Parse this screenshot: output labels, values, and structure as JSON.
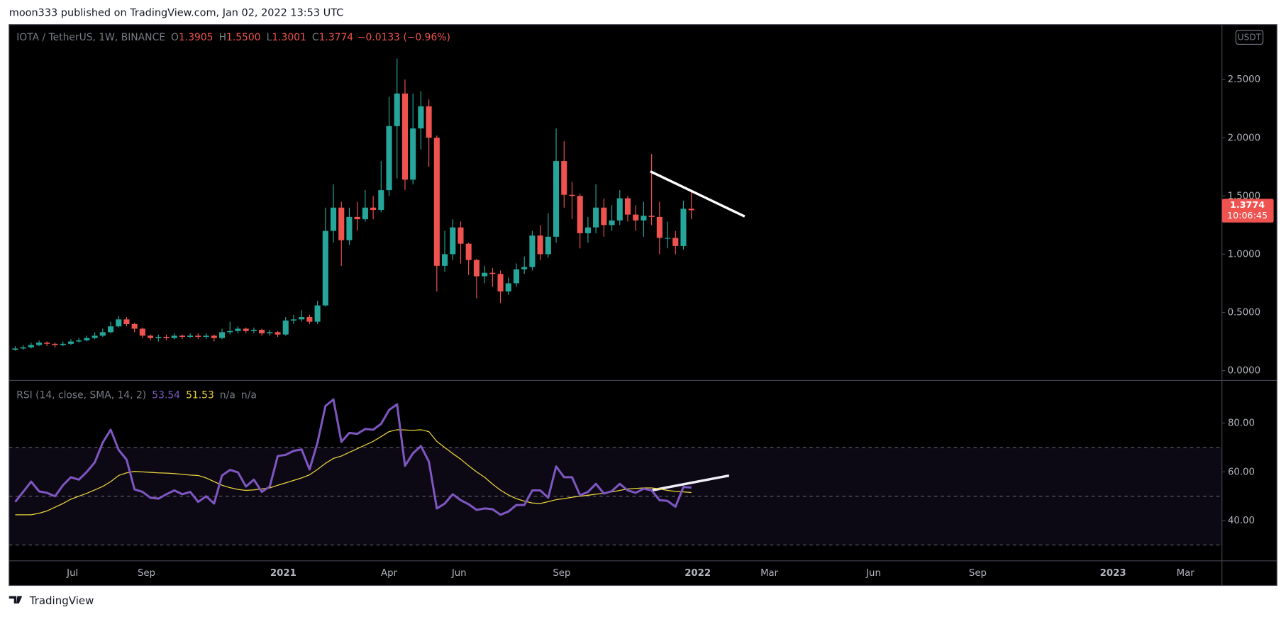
{
  "header": "moon333 published on TradingView.com, Jan 02, 2022 13:53 UTC",
  "footer": "TradingView",
  "chart_data": [
    {
      "type": "candlestick",
      "currency": "USDT",
      "legend": {
        "symbol": "IOTA / TetherUS, 1W, BINANCE",
        "fields": [
          {
            "key": "O",
            "value": "1.3905"
          },
          {
            "key": "H",
            "value": "1.5500"
          },
          {
            "key": "L",
            "value": "1.3001"
          },
          {
            "key": "C",
            "value": "1.3774"
          }
        ],
        "change": "−0.0133 (−0.96%)"
      },
      "countdown": "10:06:45",
      "up_color": "#26a69a",
      "down_color": "#ef5350",
      "open": [
        0.18,
        0.19,
        0.2,
        0.22,
        0.24,
        0.23,
        0.22,
        0.23,
        0.25,
        0.26,
        0.28,
        0.3,
        0.33,
        0.38,
        0.44,
        0.4,
        0.36,
        0.3,
        0.28,
        0.29,
        0.28,
        0.3,
        0.29,
        0.3,
        0.29,
        0.3,
        0.28,
        0.33,
        0.34,
        0.36,
        0.34,
        0.35,
        0.32,
        0.33,
        0.31,
        0.43,
        0.44,
        0.46,
        0.42,
        0.56,
        1.2,
        1.4,
        1.12,
        1.32,
        1.3,
        1.4,
        1.38,
        1.55,
        2.1,
        2.38,
        1.64,
        2.08,
        2.27,
        2.0,
        0.9,
        1.0,
        1.23,
        1.09,
        0.95,
        0.81,
        0.84,
        0.83,
        0.68,
        0.75,
        0.87,
        0.89,
        1.16,
        1.0,
        1.15,
        1.8,
        1.51,
        1.5,
        1.18,
        1.23,
        1.4,
        1.25,
        1.29,
        1.48,
        1.34,
        1.29,
        1.33,
        1.32,
        1.14,
        1.14,
        1.07,
        1.3905
      ],
      "high": [
        0.21,
        0.22,
        0.24,
        0.26,
        0.25,
        0.24,
        0.25,
        0.27,
        0.28,
        0.3,
        0.33,
        0.36,
        0.42,
        0.47,
        0.46,
        0.41,
        0.37,
        0.31,
        0.31,
        0.31,
        0.32,
        0.31,
        0.32,
        0.32,
        0.32,
        0.31,
        0.36,
        0.42,
        0.38,
        0.37,
        0.37,
        0.36,
        0.35,
        0.34,
        0.46,
        0.48,
        0.52,
        0.48,
        0.6,
        1.4,
        1.6,
        1.45,
        1.4,
        1.45,
        1.55,
        1.5,
        1.8,
        2.35,
        2.68,
        2.5,
        2.38,
        2.4,
        2.33,
        2.02,
        1.2,
        1.3,
        1.28,
        1.1,
        0.96,
        0.9,
        0.88,
        0.86,
        0.8,
        0.92,
        0.98,
        1.2,
        1.25,
        1.35,
        2.08,
        1.97,
        1.62,
        1.52,
        1.32,
        1.6,
        1.48,
        1.42,
        1.55,
        1.5,
        1.42,
        1.45,
        1.86,
        1.45,
        1.28,
        1.2,
        1.46,
        1.55
      ],
      "low": [
        0.17,
        0.18,
        0.19,
        0.21,
        0.21,
        0.2,
        0.21,
        0.22,
        0.24,
        0.25,
        0.27,
        0.29,
        0.32,
        0.37,
        0.38,
        0.33,
        0.28,
        0.26,
        0.25,
        0.26,
        0.27,
        0.27,
        0.28,
        0.27,
        0.27,
        0.25,
        0.27,
        0.31,
        0.32,
        0.32,
        0.32,
        0.3,
        0.3,
        0.29,
        0.3,
        0.4,
        0.42,
        0.4,
        0.4,
        0.55,
        1.1,
        0.9,
        1.08,
        1.2,
        1.28,
        1.3,
        1.36,
        1.5,
        1.65,
        1.55,
        1.6,
        1.9,
        1.75,
        0.68,
        0.85,
        0.95,
        0.92,
        0.82,
        0.62,
        0.75,
        0.72,
        0.58,
        0.65,
        0.72,
        0.83,
        0.86,
        0.95,
        0.97,
        1.1,
        1.4,
        1.3,
        1.05,
        1.1,
        1.18,
        1.15,
        1.2,
        1.25,
        1.28,
        1.2,
        1.15,
        1.25,
        1.0,
        1.05,
        1.0,
        1.04,
        1.3001
      ],
      "close": [
        0.19,
        0.2,
        0.22,
        0.24,
        0.23,
        0.22,
        0.23,
        0.25,
        0.26,
        0.28,
        0.3,
        0.33,
        0.38,
        0.44,
        0.4,
        0.36,
        0.3,
        0.28,
        0.29,
        0.28,
        0.3,
        0.29,
        0.3,
        0.29,
        0.3,
        0.28,
        0.33,
        0.34,
        0.36,
        0.34,
        0.35,
        0.32,
        0.33,
        0.31,
        0.43,
        0.44,
        0.46,
        0.42,
        0.56,
        1.2,
        1.4,
        1.12,
        1.32,
        1.3,
        1.4,
        1.38,
        1.55,
        2.1,
        2.38,
        1.64,
        2.08,
        2.27,
        2.0,
        0.9,
        1.0,
        1.23,
        1.09,
        0.95,
        0.81,
        0.84,
        0.83,
        0.68,
        0.75,
        0.87,
        0.89,
        1.16,
        1.0,
        1.15,
        1.8,
        1.51,
        1.5,
        1.18,
        1.23,
        1.4,
        1.25,
        1.29,
        1.48,
        1.34,
        1.29,
        1.33,
        1.32,
        1.14,
        1.14,
        1.07,
        1.39,
        1.3774
      ],
      "xlim": [
        -0.77,
        151.7
      ],
      "xticks": [
        {
          "value": 7.2,
          "label": "Jul"
        },
        {
          "value": 16.5,
          "label": "Sep"
        },
        {
          "value": 33.7,
          "label": "2021"
        },
        {
          "value": 47,
          "label": "Apr"
        },
        {
          "value": 55.8,
          "label": "Jun"
        },
        {
          "value": 68.7,
          "label": "Sep"
        },
        {
          "value": 85.8,
          "label": "2022"
        },
        {
          "value": 94.8,
          "label": "Mar"
        },
        {
          "value": 107.9,
          "label": "Jun"
        },
        {
          "value": 121,
          "label": "Sep"
        },
        {
          "value": 138,
          "label": "2023"
        },
        {
          "value": 147.1,
          "label": "Mar"
        }
      ],
      "ylim": [
        -0.0845,
        2.972
      ],
      "yticks": [
        {
          "value": 0,
          "label": "0.0000"
        },
        {
          "value": 0.5,
          "label": "0.5000"
        },
        {
          "value": 1,
          "label": "1.0000"
        },
        {
          "value": 1.5,
          "label": "1.5000"
        },
        {
          "value": 2,
          "label": "2.0000"
        },
        {
          "value": 2.5,
          "label": "2.5000"
        }
      ]
    },
    {
      "type": "line",
      "title": "RSI (14, close, SMA, 14, 2)",
      "extra_labels": [
        "n/a",
        "n/a"
      ],
      "levels": [
        70,
        50,
        30
      ],
      "band_color": "#7e57c2",
      "series": [
        {
          "color": "#7e57c2",
          "values": [
            47.7,
            51.8,
            56,
            52,
            51.4,
            50,
            54.5,
            57.8,
            56.8,
            60,
            63.9,
            72,
            77.3,
            69,
            65,
            52.8,
            51.8,
            49.4,
            49,
            50.8,
            52.4,
            50.8,
            51.8,
            47.7,
            50,
            47,
            58.5,
            60.8,
            59.8,
            54,
            56.8,
            51.8,
            54,
            66.5,
            67,
            68.6,
            69.2,
            61,
            72,
            87,
            89.7,
            72.3,
            76,
            75.6,
            77.6,
            77.3,
            79.7,
            85.4,
            87.7,
            62.5,
            67.6,
            70.6,
            64.2,
            45,
            47,
            50.8,
            48.4,
            46.7,
            44.4,
            45,
            44.7,
            42.4,
            43.7,
            46.4,
            46.4,
            52.4,
            52.4,
            49.4,
            62.2,
            57.8,
            57.8,
            50.4,
            51.8,
            55.1,
            51.1,
            52.1,
            55.1,
            52.4,
            51.4,
            53.1,
            52.4,
            48.4,
            48.1,
            45.7,
            53.8,
            53.54
          ]
        },
        {
          "color": "#e8d23e",
          "values": [
            42.4,
            42.4,
            42.4,
            43,
            44,
            45.5,
            47,
            48.8,
            50,
            51.2,
            52.6,
            54,
            56,
            58.5,
            59.6,
            60.2,
            60,
            59.8,
            59.6,
            59.5,
            59.3,
            59,
            58.7,
            58.5,
            57.5,
            56,
            54.5,
            53.5,
            52.8,
            52.4,
            52.6,
            53,
            53.4,
            54.5,
            55.5,
            56.5,
            57.5,
            58.8,
            61,
            63.5,
            65.5,
            66.5,
            68,
            69.5,
            71,
            72.5,
            74.5,
            76.5,
            77.3,
            77.2,
            77,
            77.3,
            76.5,
            72.5,
            70,
            67.5,
            65.2,
            62.5,
            60,
            57.8,
            55,
            52.5,
            50.5,
            49,
            48,
            47.2,
            47,
            47.8,
            48.6,
            49,
            49.6,
            50,
            50.4,
            50.8,
            51.2,
            51.8,
            52.4,
            53,
            53.2,
            53.4,
            53.4,
            53,
            52.4,
            52,
            51.8,
            51.53
          ]
        }
      ],
      "ylim": [
        23.5,
        97.5
      ],
      "yticks": [
        {
          "value": 40,
          "label": "40.00"
        },
        {
          "value": 60,
          "label": "60.00"
        },
        {
          "value": 80,
          "label": "80.00"
        }
      ]
    }
  ]
}
